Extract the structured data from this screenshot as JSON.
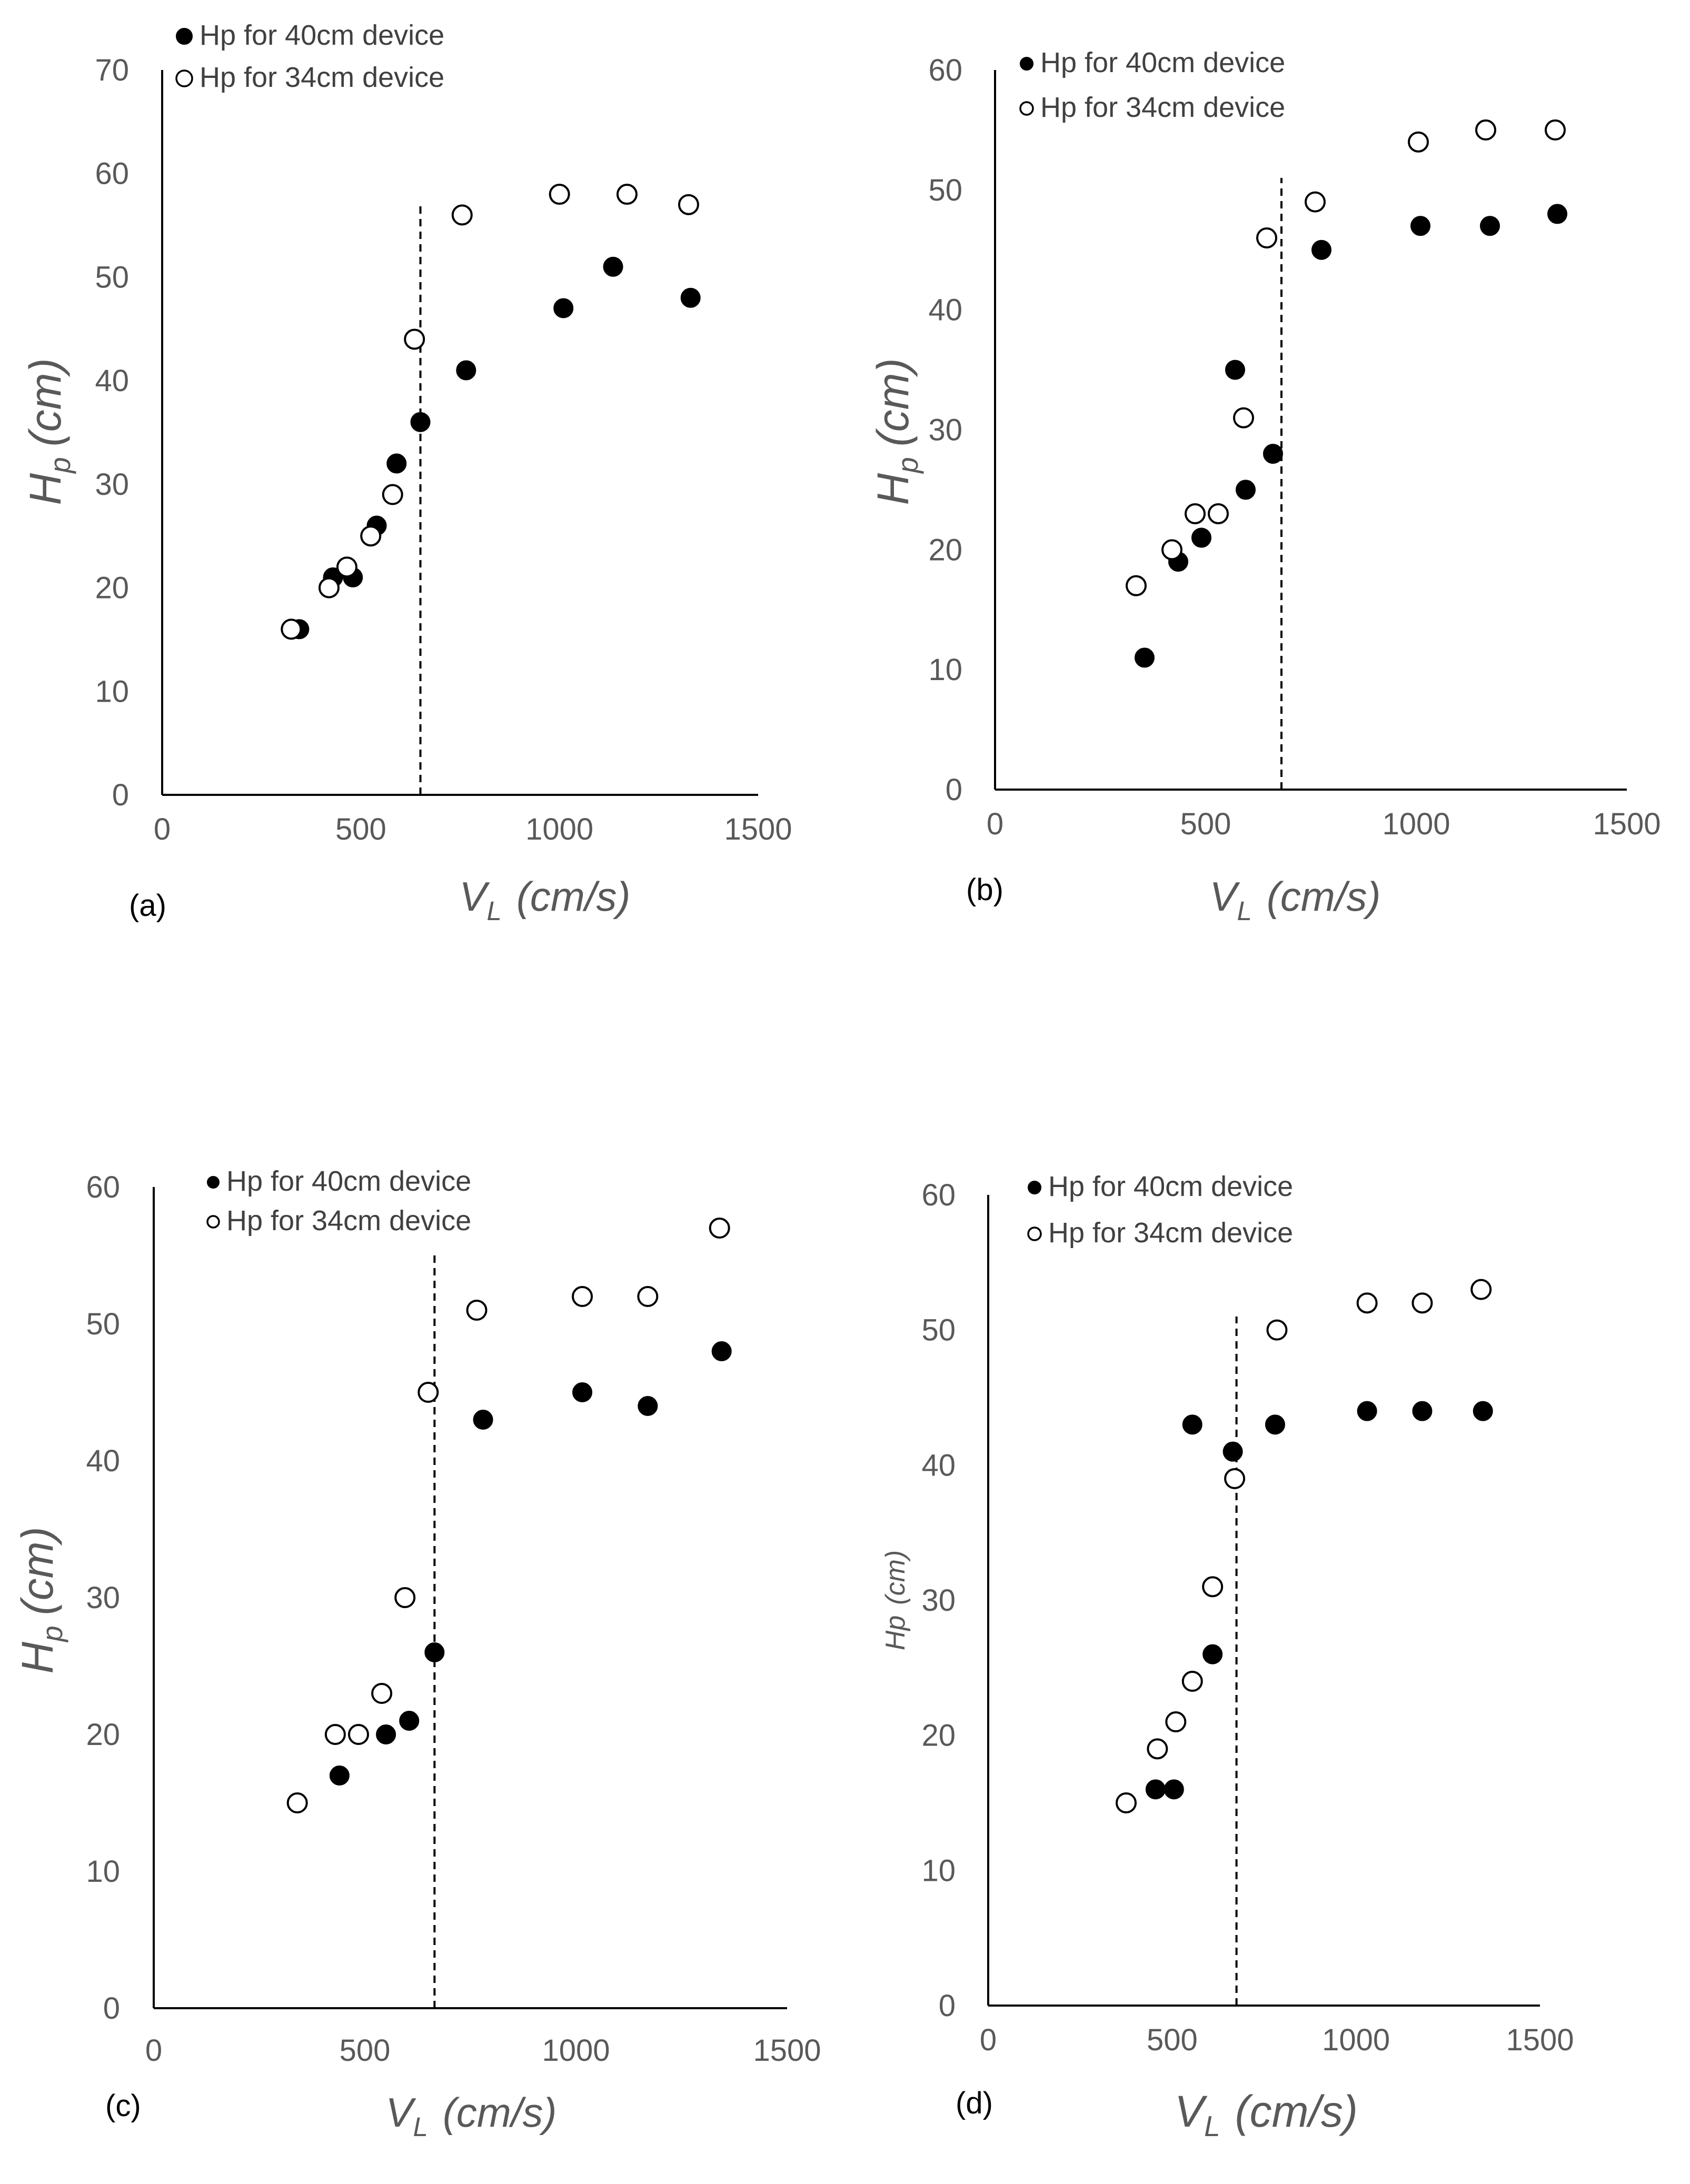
{
  "figure": {
    "series_colors": {
      "filled": "#000000",
      "open_stroke": "#000000",
      "open_fill": "#ffffff"
    }
  },
  "chart_data": [
    {
      "type": "scatter",
      "panel_label": "(a)",
      "xlabel_main": "V",
      "xlabel_sub": "L",
      "xlabel_unit": "(cm/s)",
      "ylabel_main": "H",
      "ylabel_sub": "p",
      "ylabel_unit": "(cm)",
      "xlim": [
        0,
        1500
      ],
      "ylim": [
        0,
        70
      ],
      "xticks": [
        0,
        500,
        1000,
        1500
      ],
      "yticks": [
        0,
        10,
        20,
        30,
        40,
        50,
        60,
        70
      ],
      "legend_position": "top-left",
      "threshold_x": 650,
      "threshold_ymax": 57,
      "series": [
        {
          "name": "Hp for 40cm device",
          "marker": "filled",
          "x": [
            345,
            430,
            480,
            540,
            590,
            650,
            765,
            1010,
            1135,
            1330
          ],
          "y": [
            16,
            21,
            21,
            26,
            32,
            36,
            41,
            47,
            51,
            48
          ]
        },
        {
          "name": "Hp for 34cm device",
          "marker": "open",
          "x": [
            325,
            420,
            465,
            525,
            580,
            635,
            755,
            1000,
            1170,
            1325
          ],
          "y": [
            16,
            20,
            22,
            25,
            29,
            44,
            56,
            58,
            58,
            57
          ]
        }
      ]
    },
    {
      "type": "scatter",
      "panel_label": "(b)",
      "xlabel_main": "V",
      "xlabel_sub": "L",
      "xlabel_unit": "(cm/s)",
      "ylabel_main": "H",
      "ylabel_sub": "p",
      "ylabel_unit": "(cm)",
      "xlim": [
        0,
        1500
      ],
      "ylim": [
        0,
        60
      ],
      "xticks": [
        0,
        500,
        1000,
        1500
      ],
      "yticks": [
        0,
        10,
        20,
        30,
        40,
        50,
        60
      ],
      "legend_position": "top-left",
      "threshold_x": 680,
      "threshold_ymax": 51,
      "series": [
        {
          "name": "Hp for 40cm device",
          "marker": "filled",
          "x": [
            355,
            435,
            490,
            570,
            595,
            660,
            775,
            1010,
            1175,
            1335
          ],
          "y": [
            11,
            19,
            21,
            35,
            25,
            28,
            45,
            47,
            47,
            48
          ]
        },
        {
          "name": "Hp for 34cm device",
          "marker": "open",
          "x": [
            335,
            420,
            475,
            530,
            590,
            645,
            760,
            1005,
            1165,
            1330
          ],
          "y": [
            17,
            20,
            23,
            23,
            31,
            46,
            49,
            54,
            55,
            55
          ]
        }
      ]
    },
    {
      "type": "scatter",
      "panel_label": "(c)",
      "xlabel_main": "V",
      "xlabel_sub": "L",
      "xlabel_unit": "(cm/s)",
      "ylabel_main": "H",
      "ylabel_sub": "p",
      "ylabel_unit": "(cm)",
      "xlim": [
        0,
        1500
      ],
      "ylim": [
        0,
        60
      ],
      "xticks": [
        0,
        500,
        1000,
        1500
      ],
      "yticks": [
        0,
        10,
        20,
        30,
        40,
        50,
        60
      ],
      "legend_position": "top-left",
      "threshold_x": 665,
      "threshold_ymax": 55,
      "series": [
        {
          "name": "Hp for 40cm device",
          "marker": "filled",
          "x": [
            440,
            550,
            605,
            665,
            780,
            1015,
            1170,
            1345
          ],
          "y": [
            17,
            20,
            21,
            26,
            43,
            45,
            44,
            48
          ]
        },
        {
          "name": "Hp for 34cm device",
          "marker": "open",
          "x": [
            340,
            430,
            485,
            540,
            595,
            650,
            765,
            1015,
            1170,
            1340
          ],
          "y": [
            15,
            20,
            20,
            23,
            30,
            45,
            51,
            52,
            52,
            57
          ]
        }
      ]
    },
    {
      "type": "scatter",
      "panel_label": "(d)",
      "xlabel_main": "V",
      "xlabel_sub": "L",
      "xlabel_unit": "(cm/s)",
      "ylabel_main": "Hp",
      "ylabel_sub": "",
      "ylabel_unit": "(cm)",
      "xlim": [
        0,
        1500
      ],
      "ylim": [
        0,
        60
      ],
      "xticks": [
        0,
        500,
        1000,
        1500
      ],
      "yticks": [
        0,
        10,
        20,
        30,
        40,
        50,
        60
      ],
      "legend_position": "top-left",
      "threshold_x": 675,
      "threshold_ymax": 51,
      "series": [
        {
          "name": "Hp for 40cm device",
          "marker": "filled",
          "x": [
            455,
            505,
            555,
            610,
            665,
            780,
            1030,
            1180,
            1345
          ],
          "y": [
            16,
            16,
            43,
            26,
            41,
            43,
            44,
            44,
            44
          ]
        },
        {
          "name": "Hp for 34cm device",
          "marker": "open",
          "x": [
            375,
            460,
            510,
            555,
            610,
            670,
            785,
            1030,
            1180,
            1340
          ],
          "y": [
            15,
            19,
            21,
            24,
            31,
            39,
            50,
            52,
            52,
            53
          ]
        }
      ]
    }
  ]
}
